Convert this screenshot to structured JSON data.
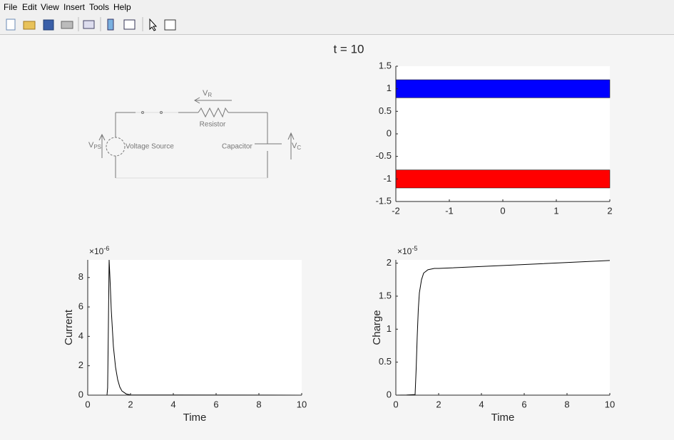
{
  "menu": [
    "File",
    "Edit",
    "View",
    "Insert",
    "Tools",
    "Help"
  ],
  "figure_title": "t = 10",
  "circuit": {
    "resistor_voltage": {
      "main": "V",
      "sub": "R"
    },
    "resistor": "Resistor",
    "source_voltage": {
      "main": "V",
      "sub": "PS"
    },
    "source": "Voltage Source",
    "capacitor": "Capacitor",
    "capacitor_voltage": {
      "main": "V",
      "sub": "C"
    }
  },
  "chart_data": [
    {
      "type": "patch",
      "patches": [
        {
          "color": "#0000ff",
          "x": [
            -2,
            2
          ],
          "y": [
            0.8,
            1.2
          ]
        },
        {
          "color": "#ff0000",
          "x": [
            -2,
            2
          ],
          "y": [
            -1.2,
            -0.8
          ]
        }
      ],
      "xlim": [
        -2,
        2
      ],
      "xticks": [
        -2,
        -1,
        0,
        1,
        2
      ],
      "ylim": [
        -1.5,
        1.5
      ],
      "yticks": [
        -1.5,
        -1,
        -0.5,
        0,
        0.5,
        1,
        1.5
      ]
    },
    {
      "type": "line",
      "xlabel": "Time",
      "ylabel": "Current",
      "y_multiplier": {
        "base": "×10",
        "exponent": "-6"
      },
      "x": [
        0,
        0.9,
        0.93,
        0.96,
        1.0,
        1.05,
        1.1,
        1.2,
        1.3,
        1.4,
        1.5,
        1.6,
        1.8,
        2,
        10
      ],
      "values": [
        0,
        0,
        0.5,
        4,
        9.2,
        7.6,
        5.8,
        3.3,
        1.9,
        1.05,
        0.55,
        0.28,
        0.08,
        0.02,
        0
      ],
      "color": "#000000",
      "xlim": [
        0,
        10
      ],
      "xticks": [
        0,
        2,
        4,
        6,
        8,
        10
      ],
      "ylim": [
        0,
        9.2
      ],
      "yticks": [
        0,
        2,
        4,
        6,
        8
      ]
    },
    {
      "type": "line",
      "xlabel": "Time",
      "ylabel": "Charge",
      "y_multiplier": {
        "base": "×10",
        "exponent": "-5"
      },
      "x": [
        0,
        0.5,
        0.9,
        0.95,
        1.0,
        1.05,
        1.1,
        1.2,
        1.3,
        1.5,
        1.8,
        2,
        10
      ],
      "values": [
        0,
        0.003,
        0.01,
        0.4,
        0.9,
        1.3,
        1.55,
        1.75,
        1.85,
        1.9,
        1.92,
        1.92,
        2.04
      ],
      "color": "#000000",
      "xlim": [
        0,
        10
      ],
      "xticks": [
        0,
        2,
        4,
        6,
        8,
        10
      ],
      "ylim": [
        0,
        2.05
      ],
      "yticks": [
        0,
        0.5,
        1,
        1.5,
        2
      ]
    }
  ]
}
